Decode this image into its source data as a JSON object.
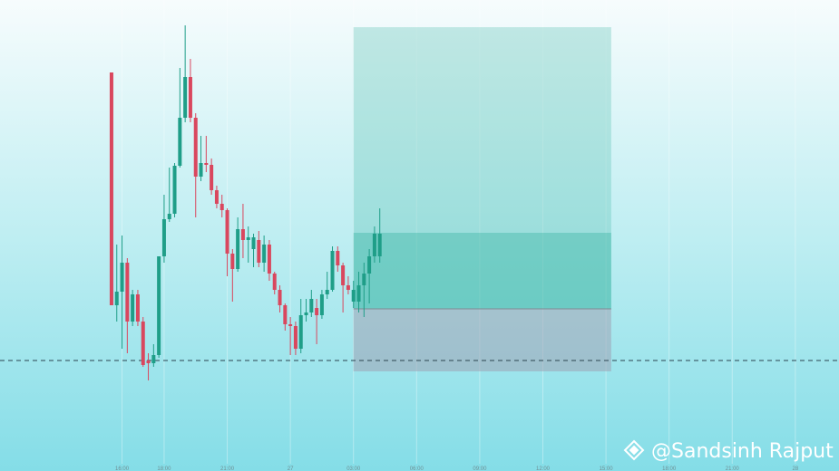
{
  "chart_data": {
    "type": "candlestick",
    "up_color": "#1f9e88",
    "down_color": "#d9475e",
    "x": [
      0,
      1,
      2,
      3,
      4,
      5,
      6,
      7,
      8,
      9,
      10,
      11,
      12,
      13,
      14,
      15,
      16,
      17,
      18,
      19,
      20,
      21,
      22,
      23,
      24,
      25,
      26,
      27,
      28,
      29,
      30,
      31,
      32,
      33,
      34,
      35,
      36,
      37,
      38,
      39,
      40,
      41,
      42,
      43,
      44,
      45,
      46,
      47,
      48,
      49,
      50,
      51
    ],
    "open": [
      440,
      183,
      198,
      230,
      165,
      195,
      165,
      122,
      119,
      128,
      237,
      278,
      284,
      337,
      390,
      435,
      390,
      325,
      340,
      338,
      310,
      295,
      288,
      240,
      223,
      267,
      255,
      245,
      255,
      230,
      250,
      218,
      200,
      183,
      162,
      160,
      135,
      172,
      175,
      180,
      172,
      195,
      200,
      243,
      227,
      205,
      187,
      187,
      205,
      218,
      237,
      237
    ],
    "high": [
      440,
      250,
      260,
      235,
      200,
      200,
      170,
      130,
      140,
      237,
      305,
      335,
      340,
      445,
      492,
      455,
      395,
      370,
      370,
      345,
      315,
      305,
      290,
      245,
      280,
      295,
      270,
      262,
      265,
      260,
      255,
      220,
      205,
      185,
      170,
      165,
      190,
      190,
      200,
      190,
      200,
      220,
      248,
      248,
      230,
      215,
      210,
      220,
      230,
      245,
      270,
      290
    ],
    "low": [
      183,
      165,
      135,
      130,
      160,
      160,
      115,
      100,
      115,
      125,
      230,
      275,
      280,
      335,
      385,
      385,
      280,
      320,
      330,
      305,
      290,
      280,
      215,
      187,
      220,
      235,
      230,
      225,
      225,
      220,
      210,
      195,
      175,
      155,
      128,
      128,
      130,
      165,
      170,
      140,
      168,
      190,
      198,
      220,
      175,
      195,
      180,
      175,
      170,
      185,
      230,
      230
    ],
    "close": [
      183,
      198,
      230,
      165,
      195,
      165,
      117,
      119,
      128,
      237,
      278,
      284,
      337,
      390,
      435,
      390,
      325,
      340,
      338,
      310,
      295,
      288,
      240,
      223,
      267,
      255,
      258,
      258,
      230,
      250,
      218,
      200,
      183,
      162,
      160,
      135,
      172,
      175,
      190,
      172,
      195,
      200,
      243,
      227,
      205,
      200,
      200,
      205,
      218,
      237,
      262,
      262
    ],
    "position": {
      "start": 46,
      "end": 95,
      "target": 490,
      "current": 263,
      "entry": 179,
      "stop": 110
    },
    "horizontal_line": 122,
    "xlim": [
      -21.2,
      138.3
    ],
    "ylim": [
      0,
      520
    ],
    "xticks": [
      {
        "value": 2,
        "label": "16:00"
      },
      {
        "value": 10,
        "label": "18:00"
      },
      {
        "value": 22,
        "label": "21:00"
      },
      {
        "value": 34,
        "label": "27"
      },
      {
        "value": 46,
        "label": "03:00"
      },
      {
        "value": 58,
        "label": "06:00"
      },
      {
        "value": 70,
        "label": "09:00"
      },
      {
        "value": 82,
        "label": "12:00"
      },
      {
        "value": 94,
        "label": "15:00"
      },
      {
        "value": 106,
        "label": "18:00"
      },
      {
        "value": 118,
        "label": "21:00"
      },
      {
        "value": 130,
        "label": "28"
      }
    ],
    "watermark": "@Sandsinh Rajput"
  }
}
